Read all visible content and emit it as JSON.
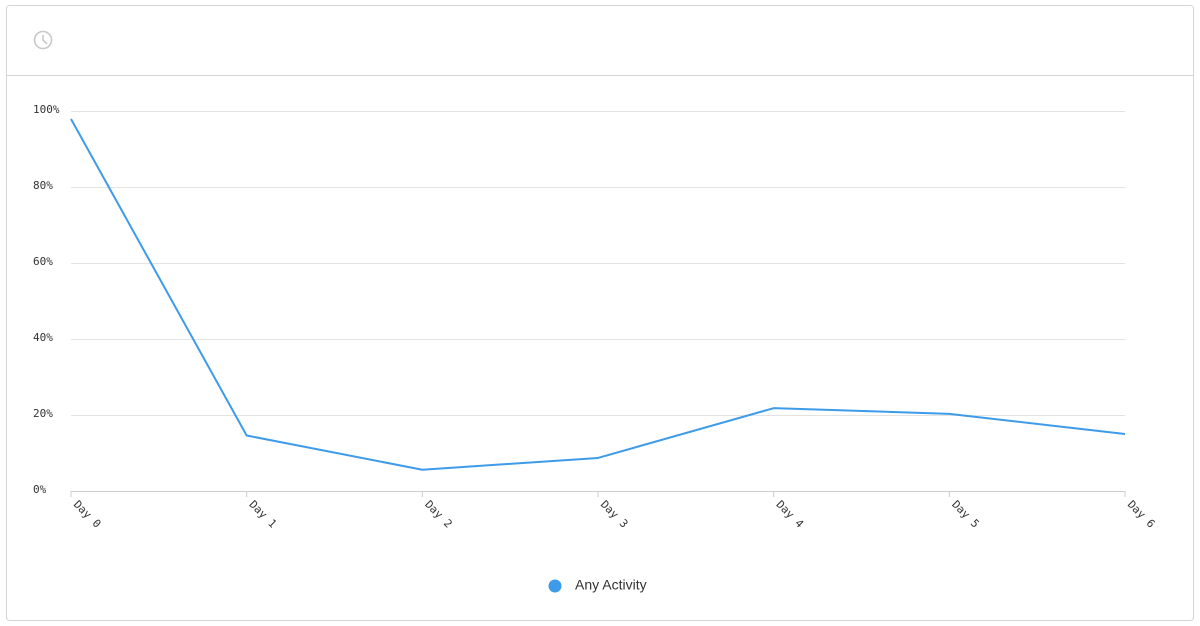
{
  "chart_data": {
    "type": "line",
    "categories": [
      "Day 0",
      "Day 1",
      "Day 2",
      "Day 3",
      "Day 4",
      "Day 5",
      "Day 6"
    ],
    "series": [
      {
        "name": "Any Activity",
        "color": "#3d9be9",
        "values": [
          97.9,
          14.6,
          5.6,
          8.7,
          21.8,
          20.3,
          15.0
        ]
      }
    ],
    "ylim": [
      0,
      100
    ],
    "yticks": [
      {
        "value": 0,
        "label": "0%"
      },
      {
        "value": 20,
        "label": "20%"
      },
      {
        "value": 40,
        "label": "40%"
      },
      {
        "value": 60,
        "label": "60%"
      },
      {
        "value": 80,
        "label": "80%"
      },
      {
        "value": 100,
        "label": "100%"
      }
    ],
    "grid": true
  }
}
